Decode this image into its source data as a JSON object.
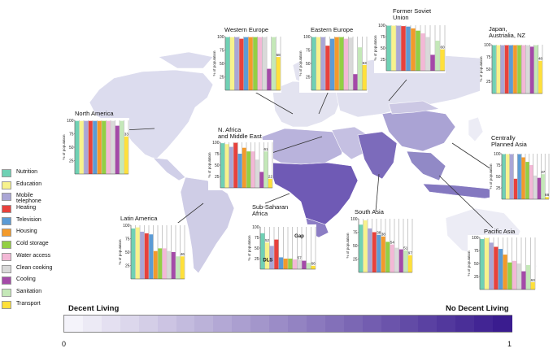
{
  "categories": [
    {
      "name": "Nutrition",
      "color": "#6fd1b4"
    },
    {
      "name": "Education",
      "color": "#f7f28c"
    },
    {
      "name": "Mobile telephone",
      "color": "#aaa6d6"
    },
    {
      "name": "Heating",
      "color": "#e8413c"
    },
    {
      "name": "Television",
      "color": "#5b9bd5"
    },
    {
      "name": "Housing",
      "color": "#f39a2a"
    },
    {
      "name": "Cold storage",
      "color": "#93cf43"
    },
    {
      "name": "Water access",
      "color": "#f3b8d6"
    },
    {
      "name": "Clean cooking",
      "color": "#d9d9d9"
    },
    {
      "name": "Cooling",
      "color": "#a44aa8"
    },
    {
      "name": "Sanitation",
      "color": "#c4e8b8"
    },
    {
      "name": "Transport",
      "color": "#ffe03a"
    }
  ],
  "ylabel": "% of population",
  "yticks": [
    "100",
    "75",
    "50",
    "25"
  ],
  "chart_data": [
    {
      "type": "bar",
      "title": "North America",
      "categories": [
        "Nutrition",
        "Education",
        "Mobile telephone",
        "Heating",
        "Television",
        "Housing",
        "Cold storage",
        "Water access",
        "Clean cooking",
        "Cooling",
        "Sanitation",
        "Transport"
      ],
      "values": [
        99,
        99,
        99,
        99,
        99,
        99,
        99,
        99,
        99,
        90,
        99,
        70
      ],
      "data_labels": [
        "",
        "",
        "",
        "",
        "",
        "",
        "",
        "",
        "",
        "",
        "",
        "33"
      ],
      "ylim": [
        0,
        100
      ]
    },
    {
      "type": "bar",
      "title": "Western Europe",
      "categories": [
        "Nutrition",
        "Education",
        "Mobile telephone",
        "Heating",
        "Television",
        "Housing",
        "Cold storage",
        "Water access",
        "Clean cooking",
        "Cooling",
        "Sanitation",
        "Transport"
      ],
      "values": [
        99,
        99,
        99,
        96,
        99,
        99,
        99,
        99,
        99,
        40,
        99,
        62
      ],
      "data_labels": [
        "",
        "",
        "",
        "",
        "",
        "",
        "",
        "",
        "",
        "",
        "",
        "58"
      ],
      "ylim": [
        0,
        100
      ]
    },
    {
      "type": "bar",
      "title": "Eastern Europe",
      "categories": [
        "Nutrition",
        "Education",
        "Mobile telephone",
        "Heating",
        "Television",
        "Housing",
        "Cold storage",
        "Water access",
        "Clean cooking",
        "Cooling",
        "Sanitation",
        "Transport"
      ],
      "values": [
        99,
        99,
        99,
        83,
        96,
        99,
        99,
        96,
        98,
        30,
        80,
        47
      ],
      "data_labels": [
        "",
        "",
        "",
        "",
        "",
        "",
        "",
        "",
        "",
        "",
        "",
        "63"
      ],
      "ylim": [
        0,
        100
      ]
    },
    {
      "type": "bar",
      "title": "Former Soviet\nUnion",
      "categories": [
        "Nutrition",
        "Education",
        "Mobile telephone",
        "Heating",
        "Television",
        "Housing",
        "Cold storage",
        "Water access",
        "Clean cooking",
        "Cooling",
        "Sanitation",
        "Transport"
      ],
      "values": [
        99,
        99,
        99,
        98,
        97,
        93,
        88,
        82,
        74,
        35,
        66,
        47
      ],
      "data_labels": [
        "",
        "",
        "",
        "",
        "",
        "",
        "",
        "",
        "",
        "",
        "",
        "60"
      ],
      "ylim": [
        0,
        100
      ]
    },
    {
      "type": "bar",
      "title": "Japan,\nAustrialia, NZ",
      "categories": [
        "Nutrition",
        "Education",
        "Mobile telephone",
        "Heating",
        "Television",
        "Housing",
        "Cold storage",
        "Water access",
        "Clean cooking",
        "Cooling",
        "Sanitation",
        "Transport"
      ],
      "values": [
        99,
        99,
        99,
        99,
        99,
        99,
        99,
        99,
        99,
        96,
        99,
        67
      ],
      "data_labels": [
        "",
        "",
        "",
        "",
        "",
        "",
        "",
        "",
        "",
        "",
        "",
        "48"
      ],
      "ylim": [
        0,
        100
      ]
    },
    {
      "type": "bar",
      "title": "N. Africa\nand Middle East",
      "categories": [
        "Nutrition",
        "Education",
        "Mobile telephone",
        "Heating",
        "Television",
        "Housing",
        "Cold storage",
        "Water access",
        "Clean cooking",
        "Cooling",
        "Sanitation",
        "Transport"
      ],
      "values": [
        98,
        96,
        90,
        99,
        75,
        88,
        80,
        80,
        62,
        35,
        80,
        20
      ],
      "data_labels": [
        "",
        "",
        "",
        "",
        "",
        "",
        "",
        "",
        "",
        "",
        "61",
        "22"
      ],
      "ylim": [
        0,
        100
      ]
    },
    {
      "type": "bar",
      "title": "Centrally\nPlanned Asia",
      "categories": [
        "Nutrition",
        "Education",
        "Mobile telephone",
        "Heating",
        "Television",
        "Housing",
        "Cold storage",
        "Water access",
        "Clean cooking",
        "Cooling",
        "Sanitation",
        "Transport"
      ],
      "values": [
        99,
        99,
        99,
        45,
        99,
        92,
        82,
        75,
        52,
        47,
        55,
        5
      ],
      "data_labels": [
        "",
        "",
        "",
        "",
        "",
        "",
        "",
        "",
        "",
        "",
        "37",
        "88"
      ],
      "ylim": [
        0,
        100
      ]
    },
    {
      "type": "bar",
      "title": "Latin America",
      "categories": [
        "Nutrition",
        "Education",
        "Mobile telephone",
        "Heating",
        "Television",
        "Housing",
        "Cold storage",
        "Water access",
        "Clean cooking",
        "Cooling",
        "Sanitation",
        "Transport"
      ],
      "values": [
        94,
        96,
        88,
        85,
        83,
        52,
        57,
        57,
        52,
        50,
        42,
        42
      ],
      "data_labels": [
        "",
        "",
        "",
        "",
        "",
        "",
        "",
        "",
        "",
        "",
        "",
        "46"
      ],
      "ylim": [
        0,
        100
      ]
    },
    {
      "type": "bar",
      "title": "Sub-Saharan\nAfrica",
      "categories": [
        "Nutrition",
        "Education",
        "Mobile telephone",
        "Heating",
        "Television",
        "Housing",
        "Cold storage",
        "Water access",
        "Clean cooking",
        "Cooling",
        "Sanitation",
        "Transport"
      ],
      "values": [
        85,
        63,
        55,
        70,
        28,
        25,
        25,
        23,
        22,
        20,
        15,
        8
      ],
      "data_labels": [
        "",
        "52",
        "",
        "",
        "",
        "",
        "",
        "",
        "57",
        "",
        "",
        "66"
      ],
      "ylim": [
        0,
        100
      ],
      "annotations": [
        "Gap",
        "DLS"
      ]
    },
    {
      "type": "bar",
      "title": "South Asia",
      "categories": [
        "Nutrition",
        "Education",
        "Mobile telephone",
        "Heating",
        "Television",
        "Housing",
        "Cold storage",
        "Water access",
        "Clean cooking",
        "Cooling",
        "Sanitation",
        "Transport"
      ],
      "values": [
        89,
        97,
        82,
        75,
        70,
        67,
        57,
        52,
        46,
        43,
        41,
        32
      ],
      "data_labels": [
        "",
        "",
        "",
        "",
        "38",
        "38",
        "",
        "54",
        "",
        "",
        "51",
        "97"
      ],
      "ylim": [
        0,
        100
      ]
    },
    {
      "type": "bar",
      "title": "Pacific Asia",
      "categories": [
        "Nutrition",
        "Education",
        "Mobile telephone",
        "Heating",
        "Television",
        "Housing",
        "Cold storage",
        "Water access",
        "Clean cooking",
        "Cooling",
        "Sanitation",
        "Transport"
      ],
      "values": [
        97,
        99,
        90,
        82,
        78,
        67,
        52,
        55,
        50,
        35,
        47,
        14
      ],
      "data_labels": [
        "",
        "",
        "",
        "",
        "",
        "",
        "",
        "",
        "",
        "",
        "",
        "63"
      ],
      "ylim": [
        0,
        100
      ]
    }
  ],
  "scale": {
    "left_label": "Decent Living",
    "right_label": "No Decent Living",
    "min_label": "0",
    "max_label": "1",
    "color_start": "#f4f3fa",
    "color_end": "#3a1c8f"
  }
}
